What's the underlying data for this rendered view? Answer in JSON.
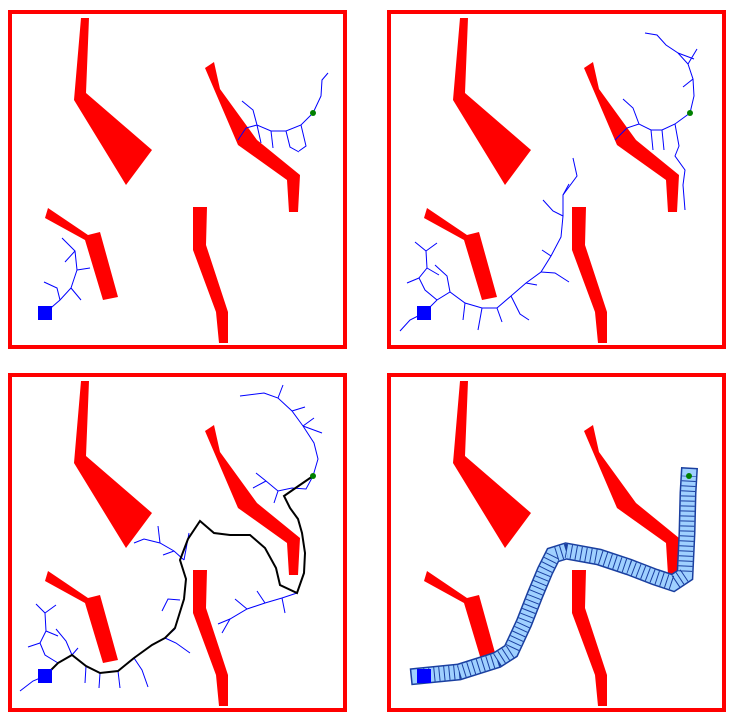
{
  "figure": {
    "description_visible_text": "",
    "panel_count": 4,
    "panels": [
      {
        "id": "panel-1",
        "stage": "initial-trees"
      },
      {
        "id": "panel-2",
        "stage": "grown-trees"
      },
      {
        "id": "panel-3",
        "stage": "connected-path"
      },
      {
        "id": "panel-4",
        "stage": "swept-path"
      }
    ]
  },
  "colors": {
    "frame": "#ff0000",
    "obstacle": "#ff0000",
    "tree": "#0000ff",
    "path": "#000000",
    "start": "#0000ff",
    "goal": "#008000",
    "sweep_fill": "#9fd0ff",
    "sweep_stroke": "#1a3fa0"
  }
}
